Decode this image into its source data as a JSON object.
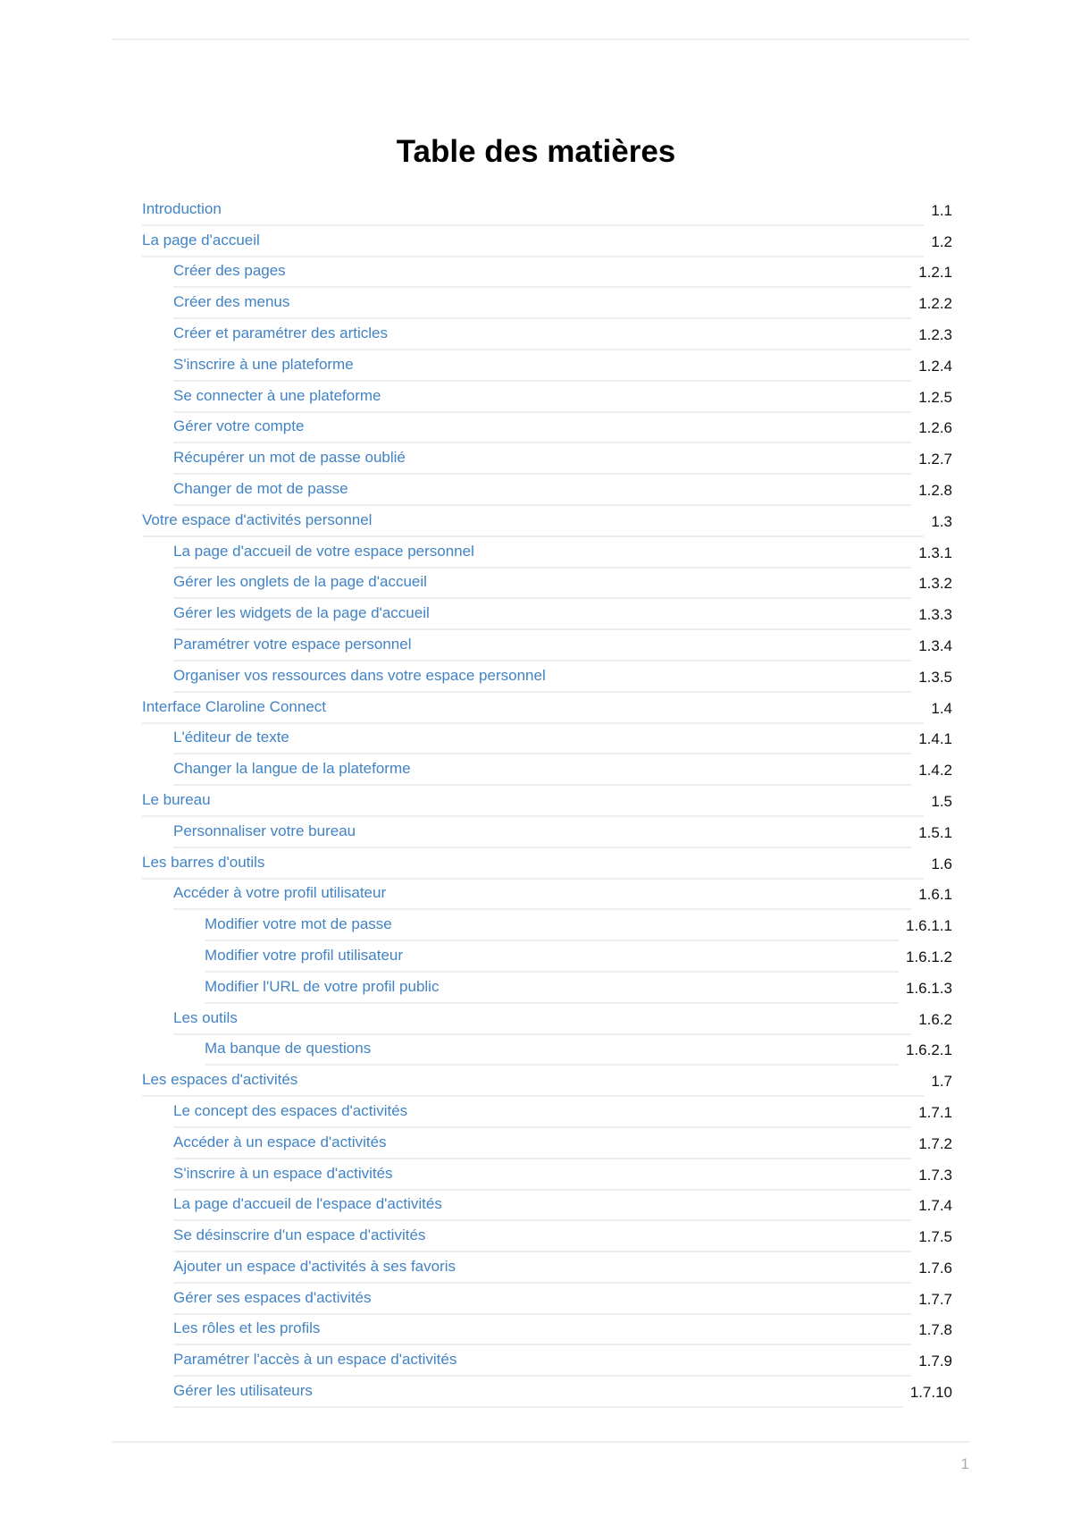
{
  "title": "Table des matières",
  "page_number": "1",
  "colors": {
    "link": "#4183c4",
    "rule": "#eeeeee"
  },
  "entries": [
    {
      "label": "Introduction",
      "num": "1.1",
      "level": 1
    },
    {
      "label": "La page d'accueil",
      "num": "1.2",
      "level": 1
    },
    {
      "label": "Créer des pages",
      "num": "1.2.1",
      "level": 2
    },
    {
      "label": "Créer des menus",
      "num": "1.2.2",
      "level": 2
    },
    {
      "label": "Créer et paramétrer des articles",
      "num": "1.2.3",
      "level": 2
    },
    {
      "label": "S'inscrire à une plateforme",
      "num": "1.2.4",
      "level": 2
    },
    {
      "label": "Se connecter à une plateforme",
      "num": "1.2.5",
      "level": 2
    },
    {
      "label": "Gérer votre compte",
      "num": "1.2.6",
      "level": 2
    },
    {
      "label": "Récupérer un mot de passe oublié",
      "num": "1.2.7",
      "level": 2
    },
    {
      "label": "Changer de mot de passe",
      "num": "1.2.8",
      "level": 2
    },
    {
      "label": "Votre espace d'activités personnel",
      "num": "1.3",
      "level": 1
    },
    {
      "label": "La page d'accueil de votre espace personnel",
      "num": "1.3.1",
      "level": 2
    },
    {
      "label": "Gérer les onglets de la page d'accueil",
      "num": "1.3.2",
      "level": 2
    },
    {
      "label": "Gérer les widgets de la page d'accueil",
      "num": "1.3.3",
      "level": 2
    },
    {
      "label": "Paramétrer votre espace personnel",
      "num": "1.3.4",
      "level": 2
    },
    {
      "label": "Organiser vos ressources dans votre espace personnel",
      "num": "1.3.5",
      "level": 2
    },
    {
      "label": "Interface Claroline Connect",
      "num": "1.4",
      "level": 1
    },
    {
      "label": "L'éditeur de texte",
      "num": "1.4.1",
      "level": 2
    },
    {
      "label": "Changer la langue de la plateforme",
      "num": "1.4.2",
      "level": 2
    },
    {
      "label": "Le bureau",
      "num": "1.5",
      "level": 1
    },
    {
      "label": "Personnaliser votre bureau",
      "num": "1.5.1",
      "level": 2
    },
    {
      "label": "Les barres d'outils",
      "num": "1.6",
      "level": 1
    },
    {
      "label": "Accéder à votre profil utilisateur",
      "num": "1.6.1",
      "level": 2
    },
    {
      "label": "Modifier votre mot de passe",
      "num": "1.6.1.1",
      "level": 3
    },
    {
      "label": "Modifier votre profil utilisateur",
      "num": "1.6.1.2",
      "level": 3
    },
    {
      "label": "Modifier l'URL de votre profil public",
      "num": "1.6.1.3",
      "level": 3
    },
    {
      "label": "Les outils",
      "num": "1.6.2",
      "level": 2
    },
    {
      "label": "Ma banque de questions",
      "num": "1.6.2.1",
      "level": 3
    },
    {
      "label": "Les espaces d'activités",
      "num": "1.7",
      "level": 1
    },
    {
      "label": "Le concept des espaces d'activités",
      "num": "1.7.1",
      "level": 2
    },
    {
      "label": "Accéder à un espace d'activités",
      "num": "1.7.2",
      "level": 2
    },
    {
      "label": "S'inscrire à un espace d'activités",
      "num": "1.7.3",
      "level": 2
    },
    {
      "label": "La page d'accueil de l'espace d'activités",
      "num": "1.7.4",
      "level": 2
    },
    {
      "label": "Se désinscrire d'un espace d'activités",
      "num": "1.7.5",
      "level": 2
    },
    {
      "label": "Ajouter un espace d'activités à ses favoris",
      "num": "1.7.6",
      "level": 2
    },
    {
      "label": "Gérer ses espaces d'activités",
      "num": "1.7.7",
      "level": 2
    },
    {
      "label": "Les rôles et les profils",
      "num": "1.7.8",
      "level": 2
    },
    {
      "label": "Paramétrer l'accès à un espace d'activités",
      "num": "1.7.9",
      "level": 2
    },
    {
      "label": "Gérer les utilisateurs",
      "num": "1.7.10",
      "level": 2
    }
  ]
}
